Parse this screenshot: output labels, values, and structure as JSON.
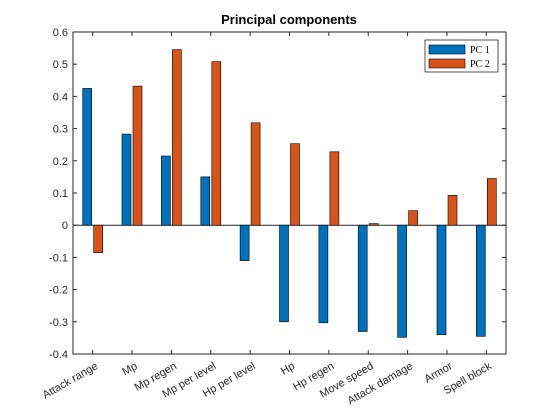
{
  "chart_data": {
    "type": "bar",
    "title": "Principal components",
    "xlabel": "",
    "ylabel": "",
    "ylim": [
      -0.4,
      0.6
    ],
    "yticks": [
      "-0.4",
      "-0.3",
      "-0.2",
      "-0.1",
      "0",
      "0.1",
      "0.2",
      "0.3",
      "0.4",
      "0.5",
      "0.6"
    ],
    "grid": false,
    "legend_position": "top-right",
    "categories": [
      "Attack range",
      "Mp",
      "Mp regen",
      "Mp per level",
      "Hp per level",
      "Hp",
      "Hp regen",
      "Move speed",
      "Attack damage",
      "Armor",
      "Spell block"
    ],
    "series": [
      {
        "name": "PC 1",
        "color": "#0072BD",
        "values": [
          0.425,
          0.283,
          0.215,
          0.15,
          -0.11,
          -0.3,
          -0.303,
          -0.33,
          -0.348,
          -0.34,
          -0.345
        ]
      },
      {
        "name": "PC 2",
        "color": "#D95319",
        "values": [
          -0.085,
          0.432,
          0.545,
          0.508,
          0.318,
          0.253,
          0.228,
          0.005,
          0.045,
          0.093,
          0.145
        ]
      }
    ]
  }
}
